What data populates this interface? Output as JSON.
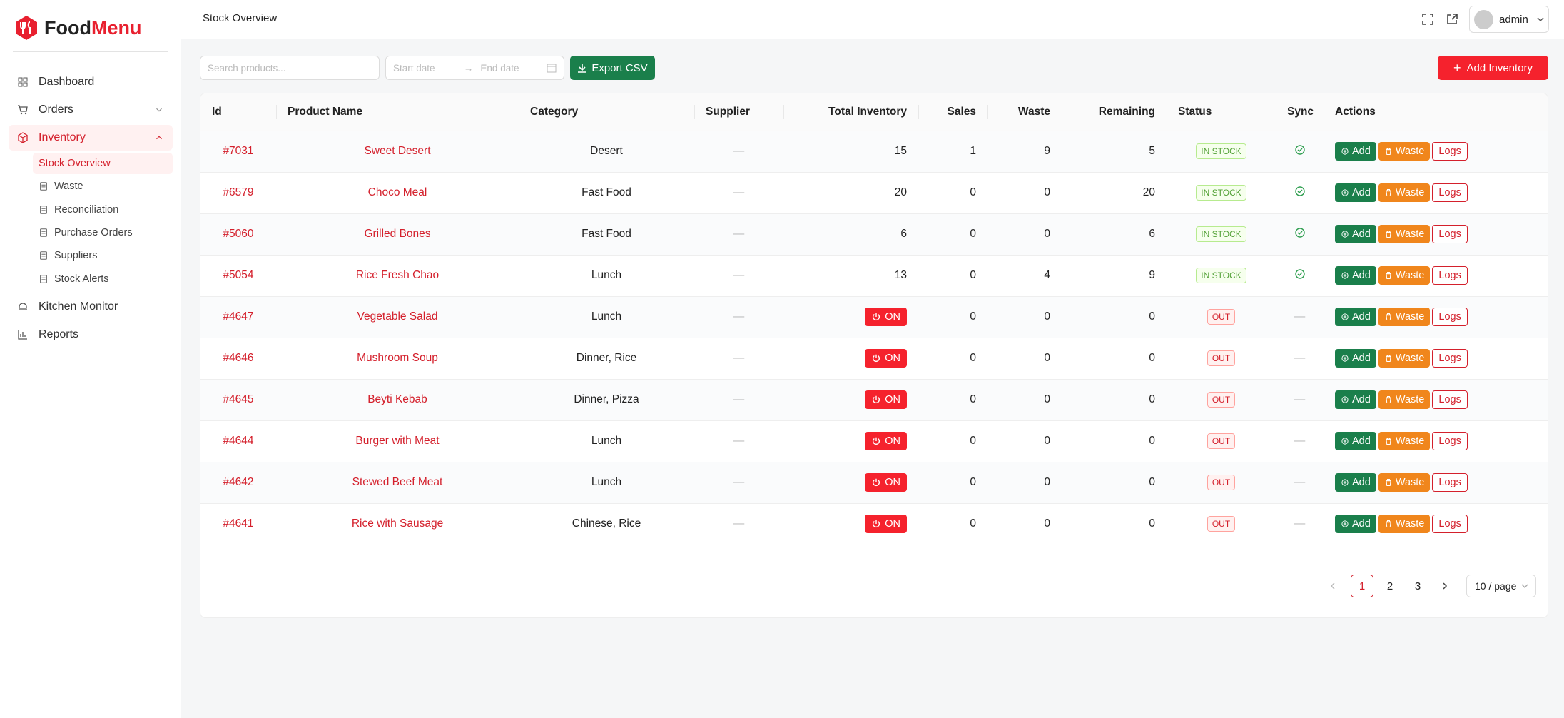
{
  "brand": {
    "first": "Food",
    "second": "Menu"
  },
  "menu": [
    "Dashboard",
    "Orders",
    "Inventory",
    "Kitchen Monitor",
    "Reports"
  ],
  "submenu": [
    "Stock Overview",
    "Waste",
    "Reconciliation",
    "Purchase Orders",
    "Suppliers",
    "Stock Alerts"
  ],
  "header": {
    "title": "Stock Overview",
    "user": "admin"
  },
  "toolbar": {
    "search": "Search products...",
    "start_date": "Start date",
    "end_date": "End date",
    "export": "Export CSV",
    "add": "Add Inventory"
  },
  "table": {
    "columns": [
      "Id",
      "Product Name",
      "Category",
      "Supplier",
      "Total Inventory",
      "Sales",
      "Waste",
      "Remaining",
      "Status",
      "Sync",
      "Actions"
    ],
    "actions": [
      "Add",
      "Waste",
      "Logs"
    ],
    "rows": [
      {
        "id": "#7031",
        "name": "Sweet Desert",
        "category": "Desert",
        "supplier": "—",
        "total": 15,
        "sales": 1,
        "waste": 9,
        "remaining": 5,
        "status": "IN STOCK",
        "synced": true
      },
      {
        "id": "#6579",
        "name": "Choco Meal",
        "category": "Fast Food",
        "supplier": "—",
        "total": 20,
        "sales": 0,
        "waste": 0,
        "remaining": 20,
        "status": "IN STOCK",
        "synced": true
      },
      {
        "id": "#5060",
        "name": "Grilled Bones",
        "category": "Fast Food",
        "supplier": "—",
        "total": 6,
        "sales": 0,
        "waste": 0,
        "remaining": 6,
        "status": "IN STOCK",
        "synced": true
      },
      {
        "id": "#5054",
        "name": "Rice Fresh Chao",
        "category": "Lunch",
        "supplier": "—",
        "total": 13,
        "sales": 0,
        "waste": 4,
        "remaining": 9,
        "status": "IN STOCK",
        "synced": true
      },
      {
        "id": "#4647",
        "name": "Vegetable Salad",
        "category": "Lunch",
        "supplier": "—",
        "total": "ON",
        "sales": 0,
        "waste": 0,
        "remaining": 0,
        "status": "OUT",
        "sync": "—"
      },
      {
        "id": "#4646",
        "name": "Mushroom Soup",
        "category": "Dinner, Rice",
        "supplier": "—",
        "total": "ON",
        "sales": 0,
        "waste": 0,
        "remaining": 0,
        "status": "OUT",
        "sync": "—"
      },
      {
        "id": "#4645",
        "name": "Beyti Kebab",
        "category": "Dinner, Pizza",
        "supplier": "—",
        "total": "ON",
        "sales": 0,
        "waste": 0,
        "remaining": 0,
        "status": "OUT",
        "sync": "—"
      },
      {
        "id": "#4644",
        "name": "Burger with Meat",
        "category": "Lunch",
        "supplier": "—",
        "total": "ON",
        "sales": 0,
        "waste": 0,
        "remaining": 0,
        "status": "OUT",
        "sync": "—"
      },
      {
        "id": "#4642",
        "name": "Stewed Beef Meat",
        "category": "Lunch",
        "supplier": "—",
        "total": "ON",
        "sales": 0,
        "waste": 0,
        "remaining": 0,
        "status": "OUT",
        "sync": "—"
      },
      {
        "id": "#4641",
        "name": "Rice with Sausage",
        "category": "Chinese, Rice",
        "supplier": "—",
        "total": "ON",
        "sales": 0,
        "waste": 0,
        "remaining": 0,
        "status": "OUT",
        "sync": "—"
      }
    ]
  },
  "pagination": {
    "pages": [
      1,
      2,
      3
    ],
    "page_size": "10 / page"
  }
}
